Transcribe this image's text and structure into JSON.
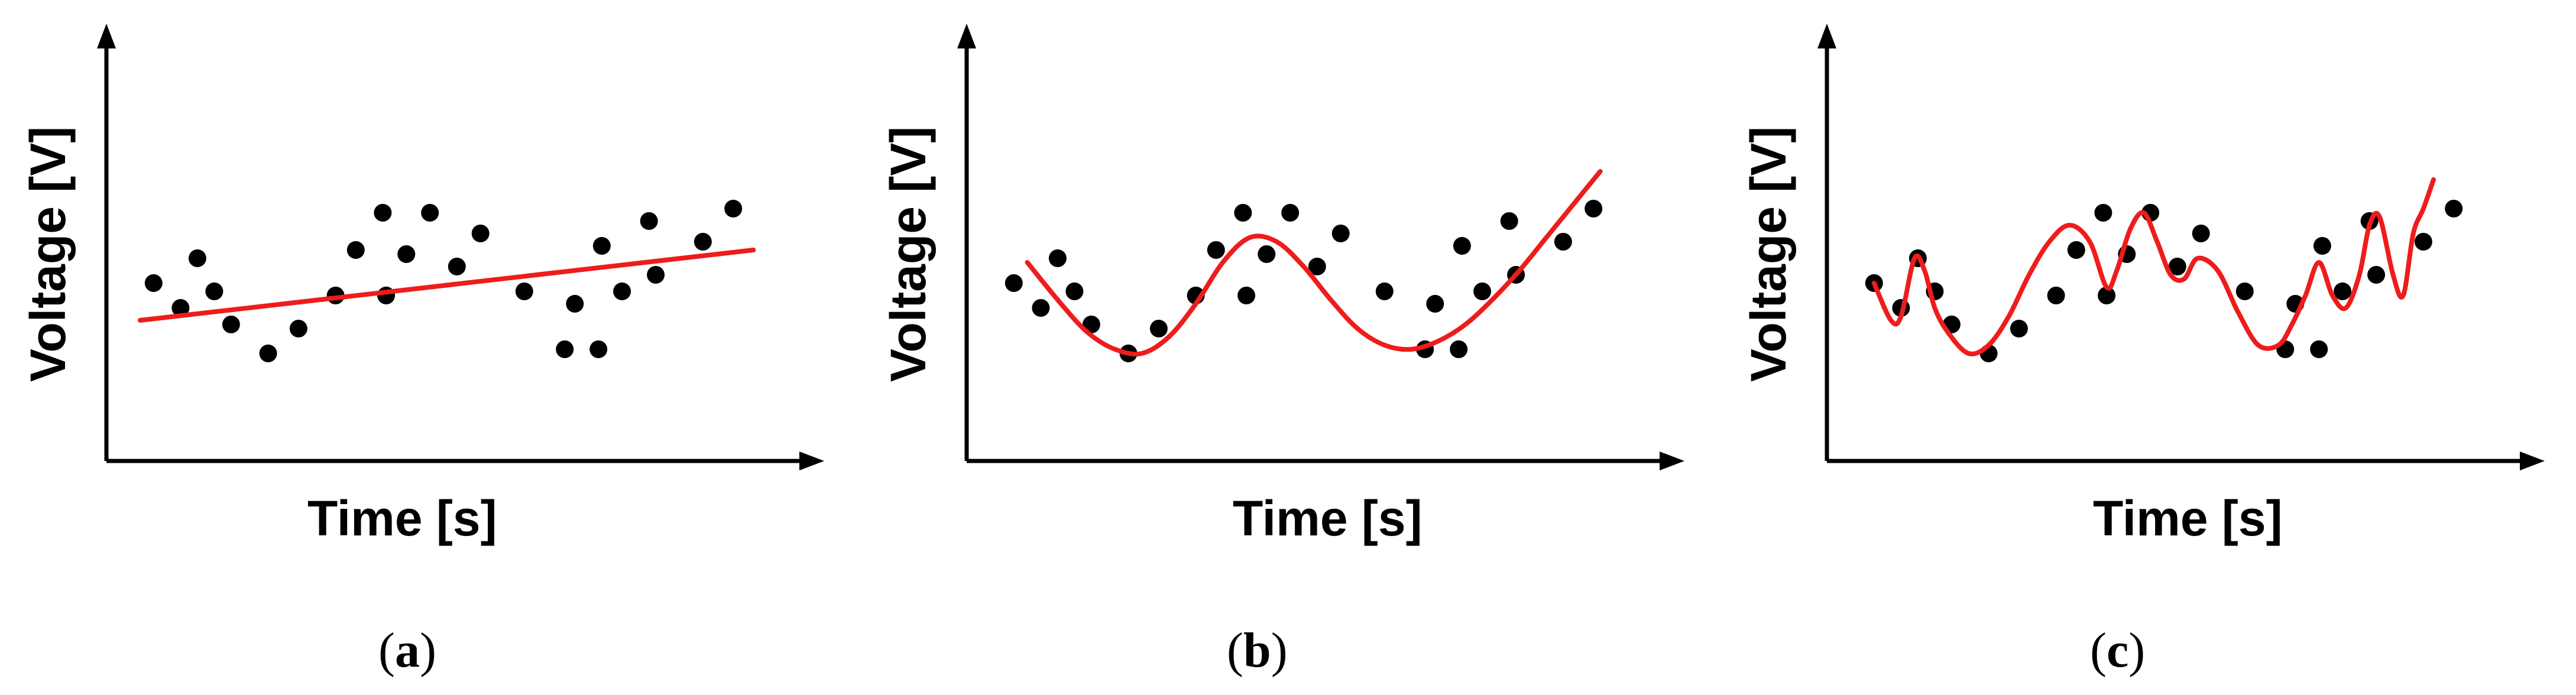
{
  "colors": {
    "points": "#000000",
    "fit": "#ee1c1c",
    "axes": "#000000"
  },
  "chart_data": [
    {
      "type": "scatter",
      "panel": "(a)",
      "caption_prefix": "(",
      "caption_letter": "a",
      "caption_suffix": ")",
      "xlabel": "Time [s]",
      "ylabel": "Voltage [V]",
      "xlim": [
        0,
        100
      ],
      "ylim": [
        0,
        100
      ],
      "grid": false,
      "points": [
        [
          7,
          43
        ],
        [
          11,
          37
        ],
        [
          13.5,
          49
        ],
        [
          16,
          41
        ],
        [
          18.5,
          33
        ],
        [
          24,
          26
        ],
        [
          28.5,
          32
        ],
        [
          34,
          40
        ],
        [
          37,
          51
        ],
        [
          41,
          60
        ],
        [
          41.5,
          40
        ],
        [
          44.5,
          50
        ],
        [
          48,
          60
        ],
        [
          52,
          47
        ],
        [
          55.5,
          55
        ],
        [
          62,
          41
        ],
        [
          68,
          27
        ],
        [
          69.5,
          38
        ],
        [
          73,
          27
        ],
        [
          73.5,
          52
        ],
        [
          76.5,
          41
        ],
        [
          80.5,
          58
        ],
        [
          81.5,
          45
        ],
        [
          88.5,
          53
        ],
        [
          93,
          61
        ]
      ],
      "fit": {
        "kind": "linear",
        "x": [
          5,
          96
        ],
        "y": [
          34,
          51
        ]
      }
    },
    {
      "type": "scatter",
      "panel": "(b)",
      "caption_prefix": "(",
      "caption_letter": "b",
      "caption_suffix": ")",
      "xlabel": "Time [s]",
      "ylabel": "Voltage [V]",
      "xlim": [
        0,
        100
      ],
      "ylim": [
        0,
        100
      ],
      "grid": false,
      "points": [
        [
          7,
          43
        ],
        [
          11,
          37
        ],
        [
          13.5,
          49
        ],
        [
          16,
          41
        ],
        [
          18.5,
          33
        ],
        [
          24,
          26
        ],
        [
          28.5,
          32
        ],
        [
          34,
          40
        ],
        [
          37,
          51
        ],
        [
          41,
          60
        ],
        [
          41.5,
          40
        ],
        [
          44.5,
          50
        ],
        [
          48,
          60
        ],
        [
          52,
          47
        ],
        [
          55.5,
          55
        ],
        [
          62,
          41
        ],
        [
          68,
          27
        ],
        [
          69.5,
          38
        ],
        [
          73,
          27
        ],
        [
          73.5,
          52
        ],
        [
          76.5,
          41
        ],
        [
          80.5,
          58
        ],
        [
          81.5,
          45
        ],
        [
          88.5,
          53
        ],
        [
          93,
          61
        ]
      ],
      "fit": {
        "kind": "smooth",
        "x": [
          9,
          14,
          18,
          22,
          26,
          30,
          34,
          38,
          42,
          46,
          50,
          54,
          58,
          62,
          66,
          70,
          74,
          78,
          82,
          86,
          90,
          94
        ],
        "y": [
          48,
          38,
          31,
          27,
          26,
          30,
          38,
          48,
          54,
          53,
          47,
          39,
          32,
          28,
          27,
          29,
          33,
          39,
          46,
          54,
          62,
          70
        ]
      }
    },
    {
      "type": "scatter",
      "panel": "(c)",
      "caption_prefix": "(",
      "caption_letter": "c",
      "caption_suffix": ")",
      "xlabel": "Time [s]",
      "ylabel": "Voltage [V]",
      "xlim": [
        0,
        100
      ],
      "ylim": [
        0,
        100
      ],
      "grid": false,
      "points": [
        [
          7,
          43
        ],
        [
          11,
          37
        ],
        [
          13.5,
          49
        ],
        [
          16,
          41
        ],
        [
          18.5,
          33
        ],
        [
          24,
          26
        ],
        [
          28.5,
          32
        ],
        [
          34,
          40
        ],
        [
          37,
          51
        ],
        [
          41,
          60
        ],
        [
          41.5,
          40
        ],
        [
          44.5,
          50
        ],
        [
          48,
          60
        ],
        [
          52,
          47
        ],
        [
          55.5,
          55
        ],
        [
          62,
          41
        ],
        [
          68,
          27
        ],
        [
          69.5,
          38
        ],
        [
          73,
          27
        ],
        [
          73.5,
          52
        ],
        [
          76.5,
          41
        ],
        [
          80.5,
          58
        ],
        [
          81.5,
          45
        ],
        [
          88.5,
          53
        ],
        [
          93,
          61
        ]
      ],
      "fit": {
        "kind": "smooth",
        "x": [
          7,
          9.5,
          11,
          13,
          14.5,
          16,
          18,
          21,
          24,
          27,
          30,
          33,
          36,
          39,
          41.5,
          43,
          45,
          47,
          49,
          51,
          53,
          55,
          58,
          61,
          64,
          67,
          69,
          71,
          73,
          75,
          77,
          79,
          80.5,
          82,
          84,
          85.5,
          87,
          88.5,
          90
        ],
        "y": [
          43,
          34,
          35,
          49,
          46,
          37,
          31,
          26,
          28,
          35,
          45,
          53,
          57,
          53,
          42,
          46,
          56,
          60,
          53,
          45,
          44,
          49,
          46,
          36,
          28,
          28,
          33,
          40,
          48,
          40,
          37,
          45,
          57,
          59,
          45,
          40,
          55,
          61,
          68
        ]
      }
    }
  ]
}
